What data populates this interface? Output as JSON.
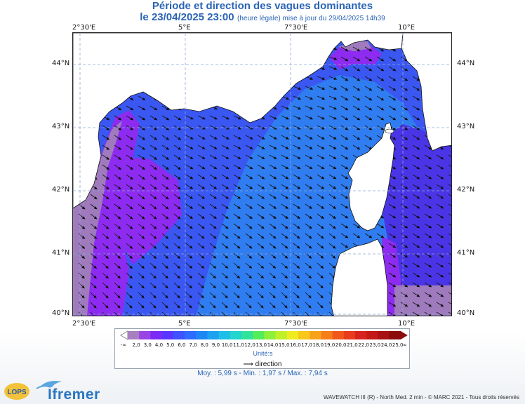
{
  "header": {
    "title": "Période et direction des vagues dominantes",
    "date": "le 23/04/2025 23:00",
    "update_note": "(heure légale) mise à jour du 29/04/2025 14h39"
  },
  "axes": {
    "lon_top": [
      "2°30'E",
      "5°E",
      "7°30'E",
      "10°E"
    ],
    "lon_bottom": [
      "2°30'E",
      "5°E",
      "7°30'E",
      "10°E"
    ],
    "lat_left": [
      "44°N",
      "43°N",
      "42°N",
      "41°N",
      "40°N"
    ],
    "lat_right": [
      "44°N",
      "43°N",
      "42°N",
      "41°N",
      "40°N"
    ]
  },
  "legend": {
    "ticks": [
      "2,0",
      "3,0",
      "4,0",
      "5,0",
      "6,0",
      "7,0",
      "8,0",
      "9,0",
      "10,0",
      "11,0",
      "12,0",
      "13,0",
      "14,0",
      "15,0",
      "16,0",
      "17,0",
      "18,0",
      "19,0",
      "20,0",
      "21,0",
      "22,0",
      "23,0",
      "24,0",
      "25,0"
    ],
    "low_end": "-∞",
    "high_end": "∞",
    "unit_label": "Unité:s",
    "direction_label": "direction",
    "colors": [
      "#a87fc0",
      "#9a44e6",
      "#7a2cf5",
      "#5a34ff",
      "#3f52ff",
      "#2e6cff",
      "#1f86f6",
      "#1da2f0",
      "#1fbee8",
      "#22d5cf",
      "#2fe39b",
      "#55ec5a",
      "#8ff03a",
      "#c2f028",
      "#eeec1e",
      "#f7c81a",
      "#f7a31a",
      "#f57d1a",
      "#f0581a",
      "#e83a1c",
      "#d8221e",
      "#c21818",
      "#a91212",
      "#8c0b0b"
    ]
  },
  "stats": {
    "mean": "Moy. : 5,99 s",
    "sep": "-",
    "minmax": "Min. : 1,97 s / Max. : 7,94 s"
  },
  "footer": {
    "credits": "WAVEWATCH III (R) - North Med. 2 min - © MARC 2021 - Tous droits réservés",
    "lops": "LOPS",
    "ifremer": "Ifremer"
  },
  "map_colors": {
    "sea_light": "#2f7df0",
    "sea_mid": "#3a57f2",
    "sea_dark": "#4a35e6",
    "violet": "#8d2cf0",
    "grey_violet": "#9f7bbd",
    "land": "#ffffff"
  }
}
